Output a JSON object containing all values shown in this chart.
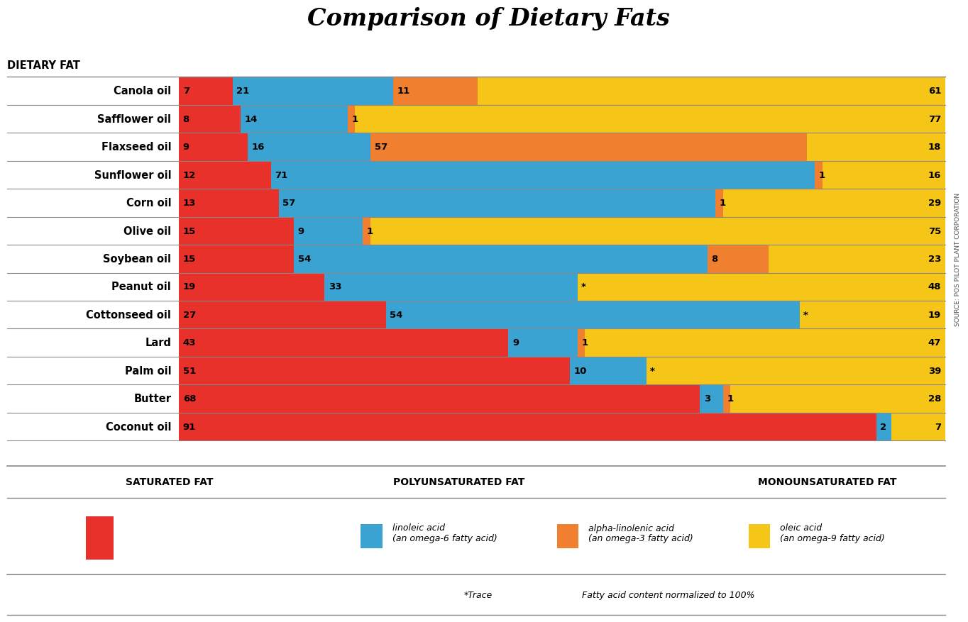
{
  "title": "Comparison of Dietary Fats",
  "dietary_fat_label": "DIETARY FAT",
  "oils": [
    "Canola oil",
    "Safflower oil",
    "Flaxseed oil",
    "Sunflower oil",
    "Corn oil",
    "Olive oil",
    "Soybean oil",
    "Peanut oil",
    "Cottonseed oil",
    "Lard",
    "Palm oil",
    "Butter",
    "Coconut oil"
  ],
  "saturated": [
    7,
    8,
    9,
    12,
    13,
    15,
    15,
    19,
    27,
    43,
    51,
    68,
    91
  ],
  "linoleic": [
    21,
    14,
    16,
    71,
    57,
    9,
    54,
    33,
    54,
    9,
    10,
    3,
    2
  ],
  "alphalinolenic": [
    11,
    1,
    57,
    1,
    1,
    1,
    8,
    0,
    0,
    1,
    0,
    1,
    0
  ],
  "oleic": [
    61,
    77,
    18,
    16,
    29,
    75,
    23,
    48,
    19,
    47,
    39,
    28,
    7
  ],
  "alin_trace": [
    false,
    false,
    false,
    false,
    false,
    false,
    false,
    true,
    true,
    false,
    true,
    false,
    false
  ],
  "alin_visible": [
    true,
    true,
    true,
    true,
    true,
    true,
    true,
    false,
    false,
    true,
    false,
    true,
    false
  ],
  "colors": {
    "saturated": "#e8312a",
    "linoleic": "#3ba3d2",
    "alphalinolenic": "#f08030",
    "oleic": "#f5c518",
    "bg": "#ffffff",
    "text_on_bar": "#000000",
    "label_bg": "#ffffff",
    "grid_line": "#888888"
  },
  "source_text": "SOURCE: POS PILOT PLANT CORPORATION"
}
